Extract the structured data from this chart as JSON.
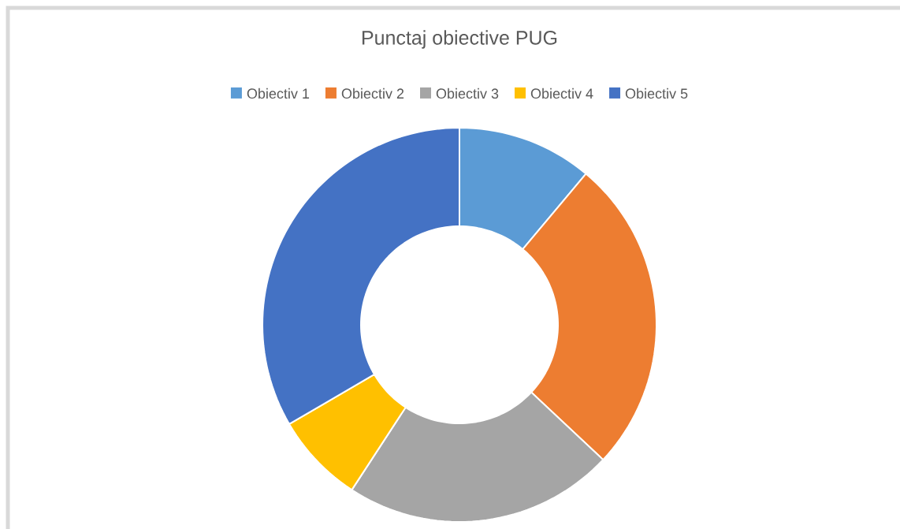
{
  "chart_data": {
    "type": "donut",
    "title": "Punctaj obiective PUG",
    "categories": [
      "Obiectiv 1",
      "Obiectiv 2",
      "Obiectiv 3",
      "Obiectiv 4",
      "Obiectiv 5"
    ],
    "values": [
      11.1,
      25.9,
      22.2,
      7.4,
      33.4
    ],
    "colors": [
      "#5b9bd5",
      "#ed7d31",
      "#a5a5a5",
      "#ffc000",
      "#4472c4"
    ],
    "legend": "top"
  }
}
